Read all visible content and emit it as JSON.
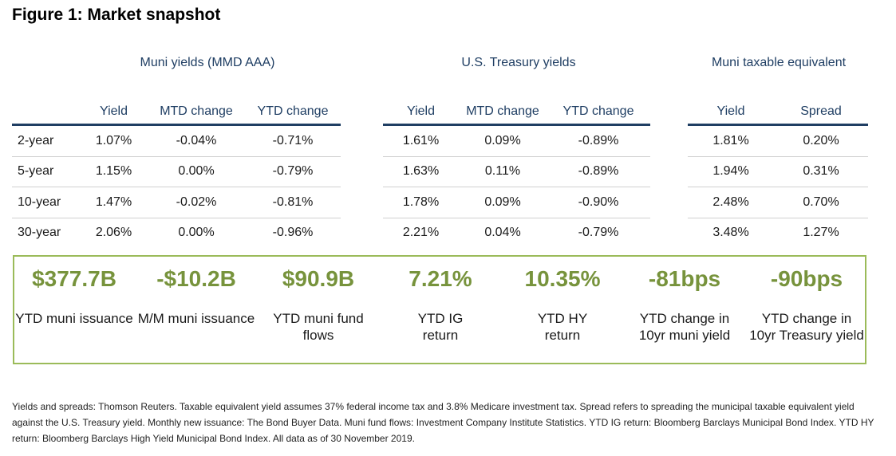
{
  "title": "Figure 1: Market snapshot",
  "groups": [
    {
      "title": "Muni yields (MMD AAA)",
      "headers": [
        "Yield",
        "MTD change",
        "YTD change"
      ]
    },
    {
      "title": "U.S. Treasury yields",
      "headers": [
        "Yield",
        "MTD change",
        "YTD change"
      ]
    },
    {
      "title": "Muni taxable equivalent",
      "headers": [
        "Yield",
        "Spread"
      ]
    }
  ],
  "row_labels": [
    "2-year",
    "5-year",
    "10-year",
    "30-year"
  ],
  "muni": [
    [
      "1.07%",
      "-0.04%",
      "-0.71%"
    ],
    [
      "1.15%",
      "0.00%",
      "-0.79%"
    ],
    [
      "1.47%",
      "-0.02%",
      "-0.81%"
    ],
    [
      "2.06%",
      "0.00%",
      "-0.96%"
    ]
  ],
  "treasury": [
    [
      "1.61%",
      "0.09%",
      "-0.89%"
    ],
    [
      "1.63%",
      "0.11%",
      "-0.89%"
    ],
    [
      "1.78%",
      "0.09%",
      "-0.90%"
    ],
    [
      "2.21%",
      "0.04%",
      "-0.79%"
    ]
  ],
  "taxable": [
    [
      "1.81%",
      "0.20%"
    ],
    [
      "1.94%",
      "0.31%"
    ],
    [
      "2.48%",
      "0.70%"
    ],
    [
      "3.48%",
      "1.27%"
    ]
  ],
  "metrics": [
    {
      "value": "$377.7B",
      "label": "YTD muni issuance"
    },
    {
      "value": "-$10.2B",
      "label": "M/M muni issuance"
    },
    {
      "value": "$90.9B",
      "label": "YTD muni fund flows"
    },
    {
      "value": "7.21%",
      "label": "YTD IG return"
    },
    {
      "value": "10.35%",
      "label": "YTD HY return"
    },
    {
      "value": "-81bps",
      "label": "YTD change in 10yr muni yield"
    },
    {
      "value": "-90bps",
      "label": "YTD change in 10yr Treasury yield"
    }
  ],
  "colors": {
    "accent_blue": "#1f3e63",
    "accent_green": "#77933c",
    "border_green": "#9bbb59"
  },
  "footnote": "Yields and spreads: Thomson Reuters. Taxable equivalent yield assumes 37% federal income tax and 3.8% Medicare investment tax. Spread refers to spreading the municipal taxable equivalent yield against the U.S. Treasury yield. Monthly new issuance: The Bond Buyer Data. Muni fund flows: Investment Company Institute Statistics. YTD IG return: Bloomberg Barclays Municipal Bond Index. YTD HY return: Bloomberg Barclays High Yield Municipal Bond Index. All data as of 30 November 2019."
}
